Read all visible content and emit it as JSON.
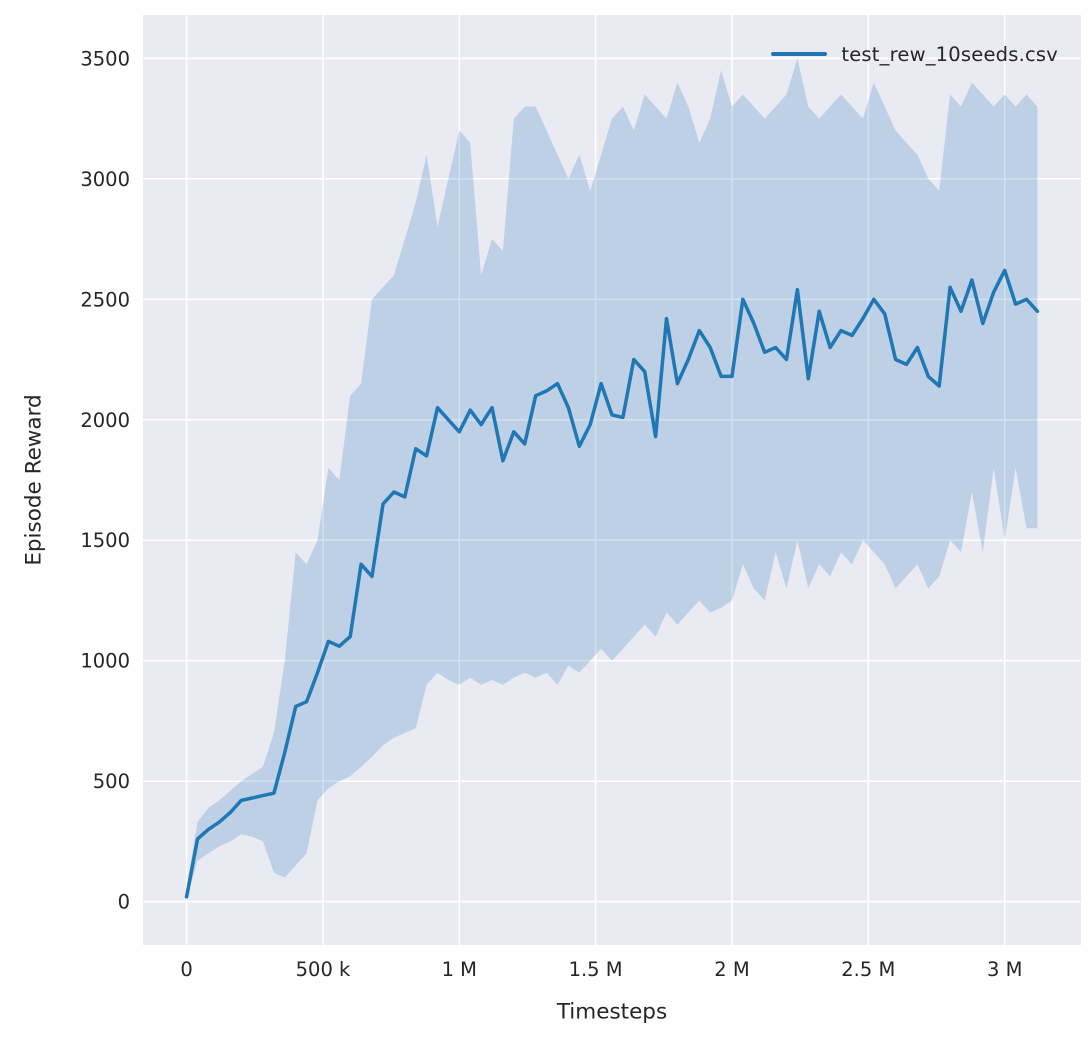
{
  "figure": {
    "background": "#ffffff",
    "axes_background": "#eaeaf2",
    "grid_color": "#ffffff",
    "tick_color": "#262626"
  },
  "legend": {
    "label": "test_rew_10seeds.csv",
    "line_color": "#1f77b4",
    "position": "upper right"
  },
  "chart_data": {
    "type": "line",
    "title": "",
    "xlabel": "Timesteps",
    "ylabel": "Episode Reward",
    "grid": true,
    "legend_position": "upper right",
    "xlim": [
      -160000,
      3280000
    ],
    "ylim": [
      -180,
      3680
    ],
    "x_ticks": [
      {
        "value": 0,
        "label": "0"
      },
      {
        "value": 500000,
        "label": "500 k"
      },
      {
        "value": 1000000,
        "label": "1 M"
      },
      {
        "value": 1500000,
        "label": "1.5 M"
      },
      {
        "value": 2000000,
        "label": "2 M"
      },
      {
        "value": 2500000,
        "label": "2.5 M"
      },
      {
        "value": 3000000,
        "label": "3 M"
      }
    ],
    "y_ticks": [
      {
        "value": 0,
        "label": "0"
      },
      {
        "value": 500,
        "label": "500"
      },
      {
        "value": 1000,
        "label": "1000"
      },
      {
        "value": 1500,
        "label": "1500"
      },
      {
        "value": 2000,
        "label": "2000"
      },
      {
        "value": 2500,
        "label": "2500"
      },
      {
        "value": 3000,
        "label": "3000"
      },
      {
        "value": 3500,
        "label": "3500"
      }
    ],
    "series": [
      {
        "name": "test_rew_10seeds.csv",
        "color": "#1f77b4",
        "band_opacity": 0.22,
        "x": [
          0,
          40000,
          80000,
          120000,
          160000,
          200000,
          240000,
          280000,
          320000,
          360000,
          400000,
          440000,
          480000,
          520000,
          560000,
          600000,
          640000,
          680000,
          720000,
          760000,
          800000,
          840000,
          880000,
          920000,
          960000,
          1000000,
          1040000,
          1080000,
          1120000,
          1160000,
          1200000,
          1240000,
          1280000,
          1320000,
          1360000,
          1400000,
          1440000,
          1480000,
          1520000,
          1560000,
          1600000,
          1640000,
          1680000,
          1720000,
          1760000,
          1800000,
          1840000,
          1880000,
          1920000,
          1960000,
          2000000,
          2040000,
          2080000,
          2120000,
          2160000,
          2200000,
          2240000,
          2280000,
          2320000,
          2360000,
          2400000,
          2440000,
          2480000,
          2520000,
          2560000,
          2600000,
          2640000,
          2680000,
          2720000,
          2760000,
          2800000,
          2840000,
          2880000,
          2920000,
          2960000,
          3000000,
          3040000,
          3080000,
          3120000
        ],
        "y": [
          20,
          260,
          300,
          330,
          370,
          420,
          430,
          440,
          450,
          620,
          810,
          830,
          950,
          1080,
          1060,
          1100,
          1400,
          1350,
          1650,
          1700,
          1680,
          1880,
          1850,
          2050,
          2000,
          1950,
          2040,
          1980,
          2050,
          1830,
          1950,
          1900,
          2100,
          2120,
          2150,
          2050,
          1890,
          1980,
          2150,
          2020,
          2010,
          2250,
          2200,
          1930,
          2420,
          2150,
          2250,
          2370,
          2300,
          2180,
          2180,
          2500,
          2400,
          2280,
          2300,
          2250,
          2540,
          2170,
          2450,
          2300,
          2370,
          2350,
          2420,
          2500,
          2440,
          2250,
          2230,
          2300,
          2180,
          2140,
          2550,
          2450,
          2580,
          2400,
          2530,
          2620,
          2480,
          2500,
          2450
        ],
        "band_lower": [
          10,
          170,
          200,
          230,
          250,
          280,
          270,
          250,
          120,
          100,
          150,
          200,
          420,
          470,
          500,
          520,
          560,
          600,
          650,
          680,
          700,
          720,
          900,
          950,
          920,
          900,
          930,
          900,
          920,
          900,
          930,
          950,
          930,
          950,
          900,
          980,
          950,
          1000,
          1050,
          1000,
          1050,
          1100,
          1150,
          1100,
          1200,
          1150,
          1200,
          1250,
          1200,
          1220,
          1250,
          1400,
          1300,
          1250,
          1450,
          1300,
          1500,
          1300,
          1400,
          1350,
          1450,
          1400,
          1500,
          1450,
          1400,
          1300,
          1350,
          1400,
          1300,
          1350,
          1500,
          1450,
          1700,
          1450,
          1800,
          1500,
          1800,
          1550,
          1550
        ],
        "band_upper": [
          60,
          330,
          390,
          420,
          460,
          500,
          530,
          560,
          700,
          1000,
          1450,
          1400,
          1500,
          1800,
          1750,
          2100,
          2150,
          2500,
          2550,
          2600,
          2750,
          2900,
          3100,
          2800,
          3000,
          3200,
          3150,
          2600,
          2750,
          2700,
          3250,
          3300,
          3300,
          3200,
          3100,
          3000,
          3100,
          2950,
          3100,
          3250,
          3300,
          3200,
          3350,
          3300,
          3250,
          3400,
          3300,
          3150,
          3250,
          3450,
          3300,
          3350,
          3300,
          3250,
          3300,
          3350,
          3500,
          3300,
          3250,
          3300,
          3350,
          3300,
          3250,
          3400,
          3300,
          3200,
          3150,
          3100,
          3000,
          2950,
          3350,
          3300,
          3400,
          3350,
          3300,
          3350,
          3300,
          3350,
          3300
        ]
      }
    ]
  }
}
